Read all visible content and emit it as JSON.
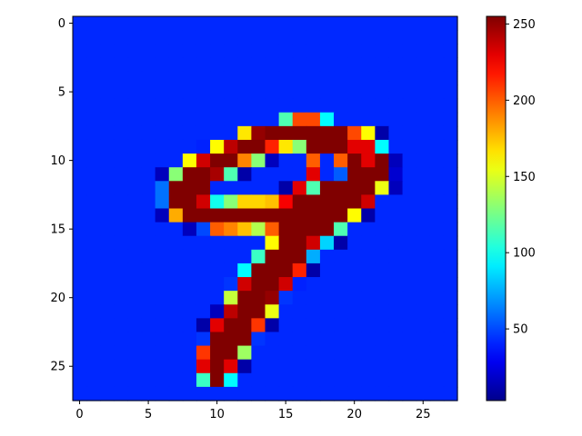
{
  "chart_data": {
    "type": "heatmap",
    "colormap": "jet",
    "rows": 28,
    "cols": 28,
    "background_value": 42,
    "value_range": [
      0,
      255
    ],
    "nonzero_cells": [
      [
        7,
        14,
        42
      ],
      [
        7,
        15,
        115
      ],
      [
        7,
        16,
        205
      ],
      [
        7,
        17,
        205
      ],
      [
        7,
        18,
        95
      ],
      [
        8,
        12,
        165
      ],
      [
        8,
        13,
        250
      ],
      [
        8,
        14,
        255
      ],
      [
        8,
        15,
        255
      ],
      [
        8,
        16,
        255
      ],
      [
        8,
        17,
        255
      ],
      [
        8,
        18,
        255
      ],
      [
        8,
        19,
        255
      ],
      [
        8,
        20,
        205
      ],
      [
        8,
        21,
        160
      ],
      [
        8,
        22,
        10
      ],
      [
        9,
        9,
        40
      ],
      [
        9,
        10,
        160
      ],
      [
        9,
        11,
        240
      ],
      [
        9,
        12,
        255
      ],
      [
        9,
        13,
        255
      ],
      [
        9,
        14,
        215
      ],
      [
        9,
        15,
        165
      ],
      [
        9,
        16,
        130
      ],
      [
        9,
        17,
        255
      ],
      [
        9,
        18,
        255
      ],
      [
        9,
        19,
        255
      ],
      [
        9,
        20,
        230
      ],
      [
        9,
        21,
        230
      ],
      [
        9,
        22,
        95
      ],
      [
        10,
        8,
        160
      ],
      [
        10,
        9,
        235
      ],
      [
        10,
        10,
        255
      ],
      [
        10,
        11,
        255
      ],
      [
        10,
        12,
        190
      ],
      [
        10,
        13,
        130
      ],
      [
        10,
        14,
        15
      ],
      [
        10,
        15,
        42
      ],
      [
        10,
        16,
        42
      ],
      [
        10,
        17,
        200
      ],
      [
        10,
        18,
        42
      ],
      [
        10,
        19,
        200
      ],
      [
        10,
        20,
        255
      ],
      [
        10,
        21,
        230
      ],
      [
        10,
        22,
        255
      ],
      [
        10,
        23,
        15
      ],
      [
        11,
        6,
        15
      ],
      [
        11,
        7,
        130
      ],
      [
        11,
        8,
        255
      ],
      [
        11,
        9,
        255
      ],
      [
        11,
        10,
        245
      ],
      [
        11,
        11,
        115
      ],
      [
        11,
        12,
        10
      ],
      [
        11,
        13,
        42
      ],
      [
        11,
        14,
        42
      ],
      [
        11,
        15,
        42
      ],
      [
        11,
        16,
        42
      ],
      [
        11,
        17,
        230
      ],
      [
        11,
        18,
        42
      ],
      [
        11,
        19,
        55
      ],
      [
        11,
        20,
        255
      ],
      [
        11,
        21,
        255
      ],
      [
        11,
        22,
        255
      ],
      [
        11,
        23,
        20
      ],
      [
        12,
        6,
        60
      ],
      [
        12,
        7,
        255
      ],
      [
        12,
        8,
        255
      ],
      [
        12,
        9,
        255
      ],
      [
        12,
        10,
        42
      ],
      [
        12,
        11,
        42
      ],
      [
        12,
        12,
        42
      ],
      [
        12,
        13,
        42
      ],
      [
        12,
        14,
        42
      ],
      [
        12,
        15,
        10
      ],
      [
        12,
        16,
        230
      ],
      [
        12,
        17,
        115
      ],
      [
        12,
        18,
        255
      ],
      [
        12,
        19,
        255
      ],
      [
        12,
        20,
        255
      ],
      [
        12,
        21,
        255
      ],
      [
        12,
        22,
        155
      ],
      [
        12,
        23,
        15
      ],
      [
        13,
        6,
        60
      ],
      [
        13,
        7,
        255
      ],
      [
        13,
        8,
        255
      ],
      [
        13,
        9,
        235
      ],
      [
        13,
        10,
        100
      ],
      [
        13,
        11,
        130
      ],
      [
        13,
        12,
        170
      ],
      [
        13,
        13,
        170
      ],
      [
        13,
        14,
        175
      ],
      [
        13,
        15,
        225
      ],
      [
        13,
        16,
        255
      ],
      [
        13,
        17,
        255
      ],
      [
        13,
        18,
        255
      ],
      [
        13,
        19,
        255
      ],
      [
        13,
        20,
        255
      ],
      [
        13,
        21,
        235
      ],
      [
        14,
        6,
        15
      ],
      [
        14,
        7,
        180
      ],
      [
        14,
        8,
        255
      ],
      [
        14,
        9,
        255
      ],
      [
        14,
        10,
        255
      ],
      [
        14,
        11,
        255
      ],
      [
        14,
        12,
        255
      ],
      [
        14,
        13,
        255
      ],
      [
        14,
        14,
        255
      ],
      [
        14,
        15,
        255
      ],
      [
        14,
        16,
        255
      ],
      [
        14,
        17,
        255
      ],
      [
        14,
        18,
        255
      ],
      [
        14,
        19,
        255
      ],
      [
        14,
        20,
        160
      ],
      [
        14,
        21,
        10
      ],
      [
        15,
        8,
        15
      ],
      [
        15,
        9,
        50
      ],
      [
        15,
        10,
        200
      ],
      [
        15,
        11,
        190
      ],
      [
        15,
        12,
        175
      ],
      [
        15,
        13,
        140
      ],
      [
        15,
        14,
        200
      ],
      [
        15,
        15,
        255
      ],
      [
        15,
        16,
        255
      ],
      [
        15,
        17,
        255
      ],
      [
        15,
        18,
        255
      ],
      [
        15,
        19,
        115
      ],
      [
        16,
        14,
        160
      ],
      [
        16,
        15,
        255
      ],
      [
        16,
        16,
        255
      ],
      [
        16,
        17,
        235
      ],
      [
        16,
        18,
        85
      ],
      [
        16,
        19,
        10
      ],
      [
        17,
        13,
        110
      ],
      [
        17,
        14,
        255
      ],
      [
        17,
        15,
        255
      ],
      [
        17,
        16,
        255
      ],
      [
        17,
        17,
        75
      ],
      [
        18,
        12,
        95
      ],
      [
        18,
        13,
        255
      ],
      [
        18,
        14,
        255
      ],
      [
        18,
        15,
        255
      ],
      [
        18,
        16,
        215
      ],
      [
        18,
        17,
        10
      ],
      [
        19,
        11,
        45
      ],
      [
        19,
        12,
        235
      ],
      [
        19,
        13,
        255
      ],
      [
        19,
        14,
        255
      ],
      [
        19,
        15,
        235
      ],
      [
        19,
        16,
        40
      ],
      [
        20,
        11,
        145
      ],
      [
        20,
        12,
        255
      ],
      [
        20,
        13,
        255
      ],
      [
        20,
        14,
        250
      ],
      [
        20,
        15,
        45
      ],
      [
        21,
        10,
        15
      ],
      [
        21,
        11,
        240
      ],
      [
        21,
        12,
        255
      ],
      [
        21,
        13,
        255
      ],
      [
        21,
        14,
        155
      ],
      [
        22,
        9,
        10
      ],
      [
        22,
        10,
        230
      ],
      [
        22,
        11,
        255
      ],
      [
        22,
        12,
        255
      ],
      [
        22,
        13,
        210
      ],
      [
        22,
        14,
        10
      ],
      [
        23,
        9,
        45
      ],
      [
        23,
        10,
        255
      ],
      [
        23,
        11,
        255
      ],
      [
        23,
        12,
        255
      ],
      [
        23,
        13,
        45
      ],
      [
        24,
        9,
        210
      ],
      [
        24,
        10,
        255
      ],
      [
        24,
        11,
        255
      ],
      [
        24,
        12,
        135
      ],
      [
        25,
        9,
        230
      ],
      [
        25,
        10,
        255
      ],
      [
        25,
        11,
        230
      ],
      [
        25,
        12,
        10
      ],
      [
        26,
        9,
        110
      ],
      [
        26,
        10,
        255
      ],
      [
        26,
        11,
        95
      ]
    ],
    "x_ticks": [
      "0",
      "5",
      "10",
      "15",
      "20",
      "25"
    ],
    "y_ticks": [
      "0",
      "5",
      "10",
      "15",
      "20",
      "25"
    ],
    "colorbar": {
      "range": [
        3,
        255
      ],
      "ticks": [
        "50",
        "100",
        "150",
        "200",
        "250"
      ]
    }
  }
}
